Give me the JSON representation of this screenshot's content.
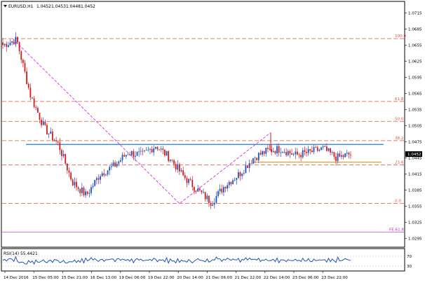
{
  "header": {
    "symbol": "EURUSD,H1",
    "open": "1.0452",
    "high": "1.0453",
    "low": "1.0448",
    "close": "1.0452"
  },
  "price_axis": {
    "ticks": [
      "1.0715",
      "1.0685",
      "1.0655",
      "1.0625",
      "1.0595",
      "1.0565",
      "1.0535",
      "1.0505",
      "1.0475",
      "1.0445",
      "1.0415",
      "1.0385",
      "1.0355",
      "1.0325",
      "1.0295"
    ],
    "current_price": "1.0452",
    "current_price_color": "#000000"
  },
  "time_axis": {
    "labels": [
      "14 Dec 2016",
      "15 Dec 05:00",
      "15 Dec 21:00",
      "16 Dec 13:00",
      "19 Dec 06:00",
      "19 Dec 22:00",
      "20 Dec 14:00",
      "21 Dec 06:00",
      "21 Dec 22:00",
      "22 Dec 14:00",
      "23 Dec 06:00",
      "23 Dec 22:00"
    ]
  },
  "fibonacci": {
    "color": "#e2553b",
    "levels": [
      {
        "label": "100.0",
        "price": 1.0667
      },
      {
        "label": "61.8",
        "price": 1.055
      },
      {
        "label": "50.0",
        "price": 1.0513
      },
      {
        "label": "38.2",
        "price": 1.0477
      },
      {
        "label": "23.6",
        "price": 1.0432
      },
      {
        "label": "0.0",
        "price": 1.036
      }
    ]
  },
  "fib_expansion": {
    "label": "FE 61.8",
    "price": 1.0307,
    "color": "#d21fd2"
  },
  "horizontal_lines": {
    "resistance": {
      "price": 1.047,
      "color": "#1e7fd6"
    },
    "support": {
      "price": 1.0437,
      "color": "#e8a03a"
    }
  },
  "rsi": {
    "label": "RSI(14) 55.4421",
    "levels": [
      "70",
      "30"
    ],
    "color": "#1f4fbf"
  },
  "colors": {
    "bull": "#1f4fbf",
    "bear": "#d21c1c",
    "fib": "#e2553b",
    "trend": "#d21fd2"
  },
  "chart_data": {
    "type": "candlestick",
    "symbol": "EURUSD",
    "timeframe": "H1",
    "ylim": [
      1.028,
      1.0735
    ],
    "approx_close_path": [
      {
        "x": "14 Dec 2016",
        "close": 1.0655
      },
      {
        "x": "14 Dec 2016",
        "close": 1.0665
      },
      {
        "x": "15 Dec 05:00",
        "close": 1.056
      },
      {
        "x": "15 Dec 05:00",
        "close": 1.05
      },
      {
        "x": "15 Dec 05:00",
        "close": 1.047
      },
      {
        "x": "15 Dec 05:00",
        "close": 1.04
      },
      {
        "x": "15 Dec 05:00",
        "close": 1.0375
      },
      {
        "x": "15 Dec 21:00",
        "close": 1.0415
      },
      {
        "x": "15 Dec 21:00",
        "close": 1.043
      },
      {
        "x": "16 Dec 13:00",
        "close": 1.0455
      },
      {
        "x": "16 Dec 13:00",
        "close": 1.045
      },
      {
        "x": "19 Dec 06:00",
        "close": 1.0468
      },
      {
        "x": "19 Dec 06:00",
        "close": 1.0445
      },
      {
        "x": "19 Dec 22:00",
        "close": 1.041
      },
      {
        "x": "19 Dec 22:00",
        "close": 1.0385
      },
      {
        "x": "20 Dec 14:00",
        "close": 1.0362
      },
      {
        "x": "20 Dec 14:00",
        "close": 1.0395
      },
      {
        "x": "21 Dec 06:00",
        "close": 1.0415
      },
      {
        "x": "21 Dec 06:00",
        "close": 1.0445
      },
      {
        "x": "21 Dec 22:00",
        "close": 1.0458
      },
      {
        "x": "21 Dec 22:00",
        "close": 1.0462
      },
      {
        "x": "22 Dec 14:00",
        "close": 1.045
      },
      {
        "x": "22 Dec 14:00",
        "close": 1.0455
      },
      {
        "x": "23 Dec 06:00",
        "close": 1.0462
      },
      {
        "x": "23 Dec 06:00",
        "close": 1.0445
      },
      {
        "x": "23 Dec 22:00",
        "close": 1.0452
      }
    ],
    "trend_line_points": [
      {
        "x": "14 Dec 2016",
        "price": 1.0667
      },
      {
        "x": "20 Dec 14:00",
        "price": 1.036
      },
      {
        "x": "22 Dec 14:00",
        "price": 1.0492
      }
    ]
  }
}
